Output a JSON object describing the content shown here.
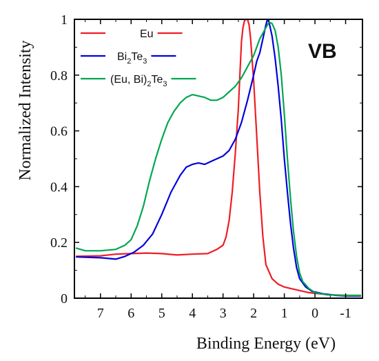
{
  "chart_data": {
    "type": "line",
    "title": "",
    "panel_label": "VB",
    "xlabel": "Binding Energy (eV)",
    "ylabel": "Normalized Intensity",
    "xlim": [
      7.85,
      -1.55
    ],
    "ylim": [
      0,
      1
    ],
    "x_reversed": true,
    "grid": false,
    "legend_position": "top-left",
    "x_ticks": [
      {
        "value": 7,
        "label": "7"
      },
      {
        "value": 6,
        "label": "6"
      },
      {
        "value": 5,
        "label": "5"
      },
      {
        "value": 4,
        "label": "4"
      },
      {
        "value": 3,
        "label": "3"
      },
      {
        "value": 2,
        "label": "2"
      },
      {
        "value": 1,
        "label": "1"
      },
      {
        "value": 0,
        "label": "0"
      },
      {
        "value": -1,
        "label": "-1"
      }
    ],
    "y_ticks": [
      {
        "value": 0,
        "label": "0"
      },
      {
        "value": 0.2,
        "label": "0.2"
      },
      {
        "value": 0.4,
        "label": "0.4"
      },
      {
        "value": 0.6,
        "label": "0.6"
      },
      {
        "value": 0.8,
        "label": "0.8"
      },
      {
        "value": 1,
        "label": "1"
      }
    ],
    "series": [
      {
        "name": "Eu",
        "color": "#ee1c24",
        "points": [
          [
            7.8,
            0.15
          ],
          [
            7.0,
            0.152
          ],
          [
            6.5,
            0.158
          ],
          [
            6.0,
            0.16
          ],
          [
            5.5,
            0.162
          ],
          [
            5.0,
            0.16
          ],
          [
            4.5,
            0.155
          ],
          [
            4.0,
            0.158
          ],
          [
            3.5,
            0.16
          ],
          [
            3.2,
            0.175
          ],
          [
            3.0,
            0.19
          ],
          [
            2.9,
            0.22
          ],
          [
            2.8,
            0.28
          ],
          [
            2.7,
            0.38
          ],
          [
            2.6,
            0.52
          ],
          [
            2.5,
            0.68
          ],
          [
            2.45,
            0.8
          ],
          [
            2.4,
            0.92
          ],
          [
            2.35,
            0.97
          ],
          [
            2.3,
            0.995
          ],
          [
            2.25,
            1.0
          ],
          [
            2.2,
            1.0
          ],
          [
            2.15,
            0.98
          ],
          [
            2.1,
            0.93
          ],
          [
            2.0,
            0.78
          ],
          [
            1.9,
            0.58
          ],
          [
            1.8,
            0.38
          ],
          [
            1.7,
            0.22
          ],
          [
            1.6,
            0.12
          ],
          [
            1.4,
            0.07
          ],
          [
            1.2,
            0.05
          ],
          [
            1.0,
            0.04
          ],
          [
            0.6,
            0.03
          ],
          [
            0.2,
            0.02
          ],
          [
            -0.2,
            0.015
          ],
          [
            -0.6,
            0.012
          ],
          [
            -1.0,
            0.01
          ],
          [
            -1.5,
            0.01
          ]
        ]
      },
      {
        "name": "Bi2Te3",
        "legend_sub": [
          "Bi",
          "2",
          "Te",
          "3"
        ],
        "color": "#0000e0",
        "points": [
          [
            7.8,
            0.148
          ],
          [
            7.0,
            0.145
          ],
          [
            6.5,
            0.14
          ],
          [
            6.2,
            0.15
          ],
          [
            5.9,
            0.165
          ],
          [
            5.6,
            0.19
          ],
          [
            5.3,
            0.23
          ],
          [
            5.0,
            0.3
          ],
          [
            4.7,
            0.38
          ],
          [
            4.4,
            0.44
          ],
          [
            4.2,
            0.47
          ],
          [
            4.0,
            0.48
          ],
          [
            3.8,
            0.485
          ],
          [
            3.6,
            0.48
          ],
          [
            3.4,
            0.49
          ],
          [
            3.2,
            0.5
          ],
          [
            3.0,
            0.51
          ],
          [
            2.8,
            0.53
          ],
          [
            2.6,
            0.57
          ],
          [
            2.4,
            0.63
          ],
          [
            2.2,
            0.71
          ],
          [
            2.0,
            0.8
          ],
          [
            1.9,
            0.85
          ],
          [
            1.8,
            0.88
          ],
          [
            1.7,
            0.93
          ],
          [
            1.6,
            0.98
          ],
          [
            1.55,
            1.0
          ],
          [
            1.5,
            0.99
          ],
          [
            1.4,
            0.94
          ],
          [
            1.3,
            0.86
          ],
          [
            1.2,
            0.76
          ],
          [
            1.1,
            0.64
          ],
          [
            1.0,
            0.5
          ],
          [
            0.9,
            0.38
          ],
          [
            0.8,
            0.27
          ],
          [
            0.7,
            0.18
          ],
          [
            0.6,
            0.11
          ],
          [
            0.5,
            0.07
          ],
          [
            0.3,
            0.04
          ],
          [
            0.1,
            0.025
          ],
          [
            -0.3,
            0.015
          ],
          [
            -0.7,
            0.01
          ],
          [
            -1.0,
            0.008
          ],
          [
            -1.5,
            0.008
          ]
        ]
      },
      {
        "name": "(Eu, Bi)2Te3",
        "legend_sub": [
          "(Eu, Bi)",
          "2",
          "Te",
          "3"
        ],
        "color": "#00a651",
        "points": [
          [
            7.8,
            0.18
          ],
          [
            7.5,
            0.17
          ],
          [
            7.0,
            0.17
          ],
          [
            6.5,
            0.175
          ],
          [
            6.2,
            0.19
          ],
          [
            6.0,
            0.21
          ],
          [
            5.8,
            0.26
          ],
          [
            5.6,
            0.33
          ],
          [
            5.4,
            0.42
          ],
          [
            5.2,
            0.5
          ],
          [
            5.0,
            0.57
          ],
          [
            4.8,
            0.63
          ],
          [
            4.6,
            0.67
          ],
          [
            4.4,
            0.7
          ],
          [
            4.2,
            0.72
          ],
          [
            4.0,
            0.73
          ],
          [
            3.8,
            0.725
          ],
          [
            3.6,
            0.72
          ],
          [
            3.4,
            0.71
          ],
          [
            3.2,
            0.71
          ],
          [
            3.0,
            0.72
          ],
          [
            2.8,
            0.74
          ],
          [
            2.6,
            0.76
          ],
          [
            2.4,
            0.79
          ],
          [
            2.2,
            0.83
          ],
          [
            2.0,
            0.87
          ],
          [
            1.8,
            0.93
          ],
          [
            1.6,
            0.97
          ],
          [
            1.5,
            0.99
          ],
          [
            1.4,
            0.985
          ],
          [
            1.3,
            0.96
          ],
          [
            1.2,
            0.9
          ],
          [
            1.1,
            0.8
          ],
          [
            1.0,
            0.66
          ],
          [
            0.9,
            0.5
          ],
          [
            0.8,
            0.36
          ],
          [
            0.7,
            0.24
          ],
          [
            0.6,
            0.15
          ],
          [
            0.5,
            0.09
          ],
          [
            0.4,
            0.06
          ],
          [
            0.2,
            0.035
          ],
          [
            0.0,
            0.02
          ],
          [
            -0.4,
            0.012
          ],
          [
            -1.0,
            0.01
          ],
          [
            -1.5,
            0.01
          ]
        ]
      }
    ]
  }
}
